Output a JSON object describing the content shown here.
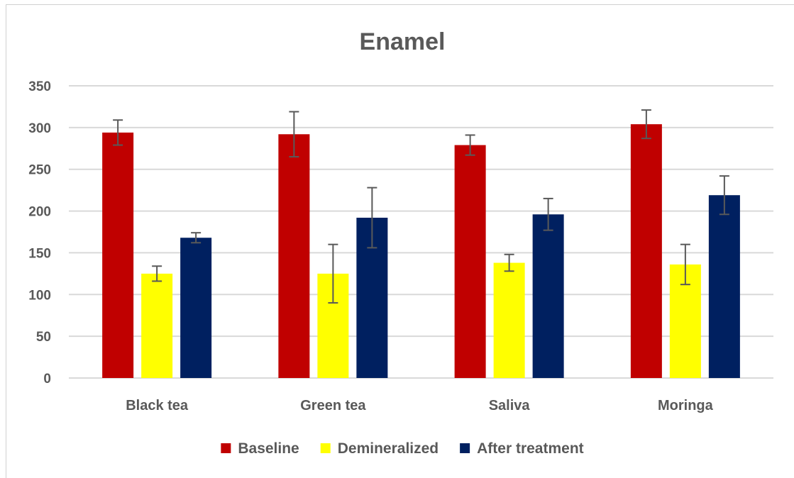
{
  "chart_data": {
    "type": "bar",
    "title": "Enamel",
    "xlabel": "",
    "ylabel": "",
    "ylim": [
      0,
      350
    ],
    "yticks": [
      0,
      50,
      100,
      150,
      200,
      250,
      300,
      350
    ],
    "grid": true,
    "legend_position": "bottom",
    "categories": [
      "Black tea",
      "Green tea",
      "Saliva",
      "Moringa"
    ],
    "series": [
      {
        "name": "Baseline",
        "color": "#c00000",
        "values": [
          294,
          292,
          279,
          304
        ],
        "errors": [
          15,
          27,
          12,
          17
        ]
      },
      {
        "name": "Demineralized",
        "color": "#ffff00",
        "values": [
          125,
          125,
          138,
          136
        ],
        "errors": [
          9,
          35,
          10,
          24
        ]
      },
      {
        "name": "After treatment",
        "color": "#002060",
        "values": [
          168,
          192,
          196,
          219
        ],
        "errors": [
          6,
          36,
          19,
          23
        ]
      }
    ],
    "error_bar_color": "#595959",
    "grid_color": "#d9d9d9"
  }
}
